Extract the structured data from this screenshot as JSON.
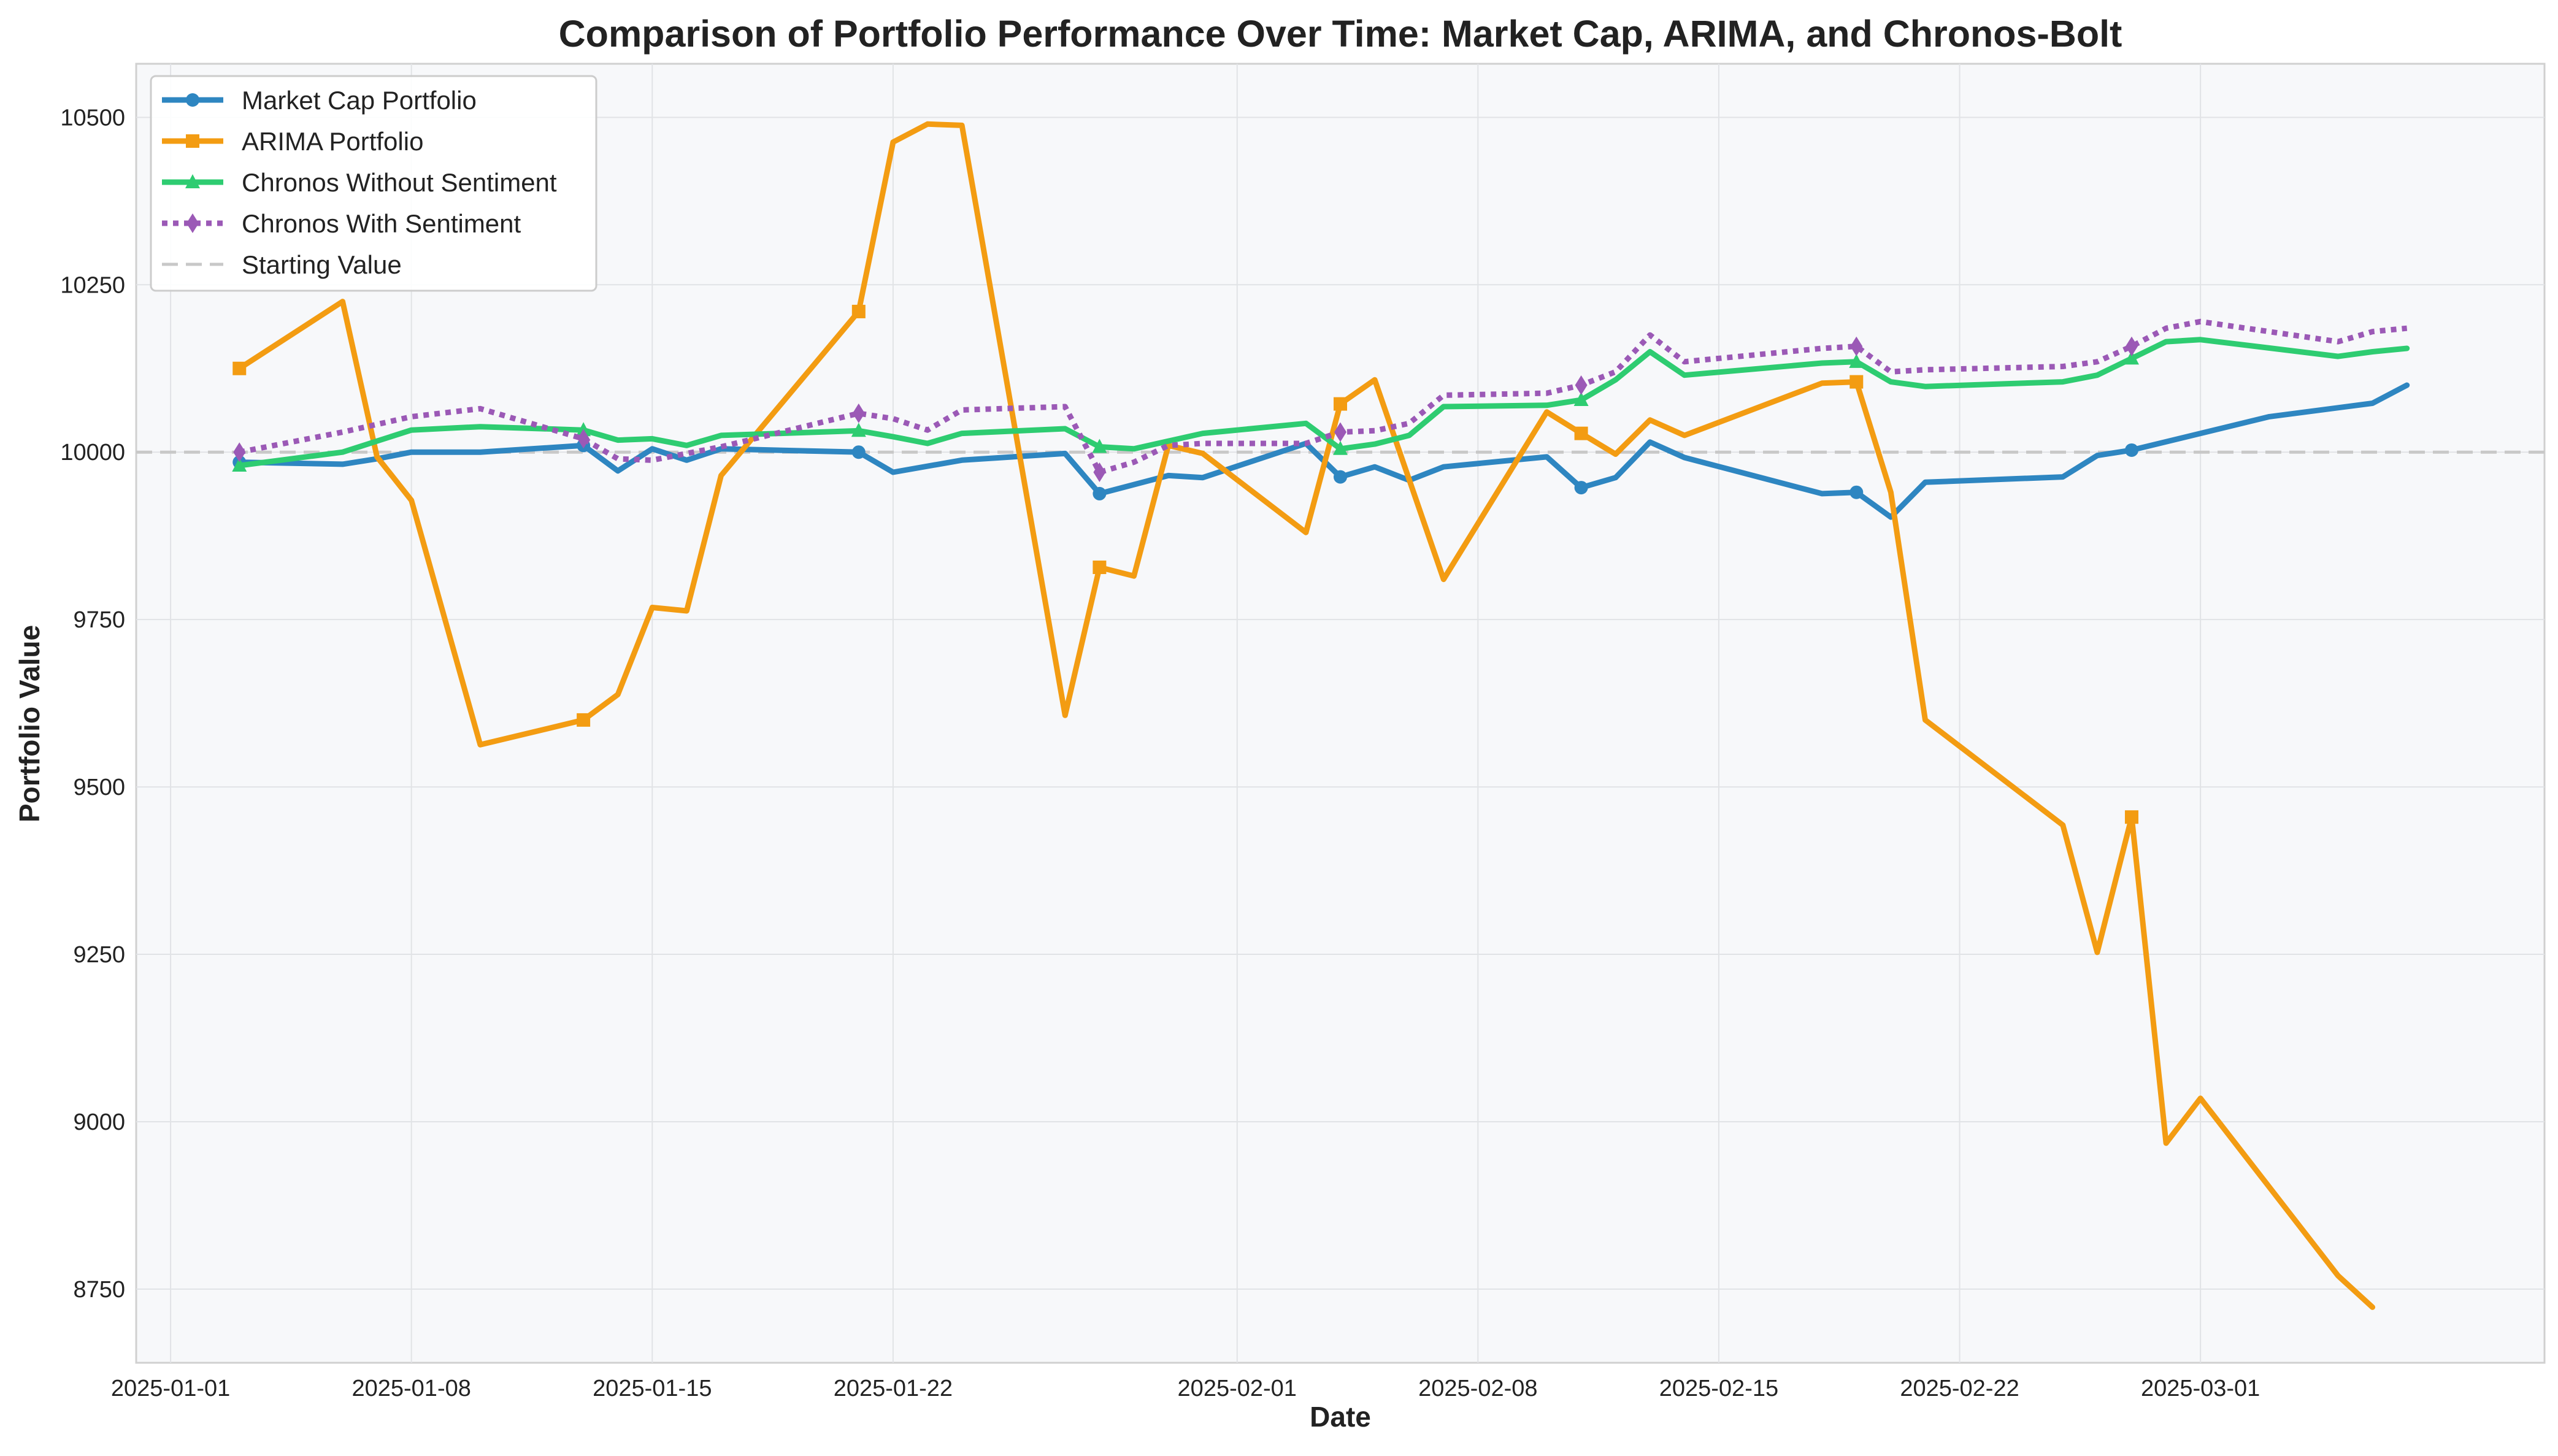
{
  "chart_data": {
    "type": "line",
    "title": "Comparison of Portfolio Performance Over Time: Market Cap, ARIMA, and Chronos-Bolt",
    "xlabel": "Date",
    "ylabel": "Portfolio Value",
    "x_ticks": [
      "2025-01-01",
      "2025-01-08",
      "2025-01-15",
      "2025-01-22",
      "2025-02-01",
      "2025-02-08",
      "2025-02-15",
      "2025-02-22",
      "2025-03-01"
    ],
    "y_ticks": [
      8750,
      9000,
      9250,
      9500,
      9750,
      10000,
      10250,
      10500
    ],
    "xlim": [
      "2024-12-31T00:00",
      "2025-03-11T00:00"
    ],
    "ylim": [
      8640,
      10580
    ],
    "grid": true,
    "legend_position": "top-left",
    "background_color": "#f7f8fa",
    "reference_line": {
      "name": "Starting Value",
      "y": 10000,
      "color": "#c8c8c8",
      "style": "dashed"
    },
    "series": [
      {
        "name": "Market Cap Portfolio",
        "color": "#2e86c1",
        "marker": "circle",
        "style": "solid",
        "marker_dates": [
          "2025-01-03",
          "2025-01-13",
          "2025-01-21",
          "2025-01-28",
          "2025-02-04",
          "2025-02-11",
          "2025-02-19",
          "2025-02-27"
        ],
        "points": [
          [
            "2025-01-03",
            9985
          ],
          [
            "2025-01-06",
            9982
          ],
          [
            "2025-01-07",
            9990
          ],
          [
            "2025-01-08",
            10000
          ],
          [
            "2025-01-10",
            10000
          ],
          [
            "2025-01-13",
            10010
          ],
          [
            "2025-01-14",
            9972
          ],
          [
            "2025-01-15",
            10005
          ],
          [
            "2025-01-16",
            9988
          ],
          [
            "2025-01-17",
            10005
          ],
          [
            "2025-01-21",
            10000
          ],
          [
            "2025-01-22",
            9970
          ],
          [
            "2025-01-24",
            9988
          ],
          [
            "2025-01-27",
            9998
          ],
          [
            "2025-01-28",
            9938
          ],
          [
            "2025-01-30",
            9965
          ],
          [
            "2025-01-31",
            9962
          ],
          [
            "2025-02-03",
            10013
          ],
          [
            "2025-02-04",
            9963
          ],
          [
            "2025-02-05",
            9978
          ],
          [
            "2025-02-06",
            9958
          ],
          [
            "2025-02-07",
            9978
          ],
          [
            "2025-02-10",
            9993
          ],
          [
            "2025-02-11",
            9947
          ],
          [
            "2025-02-12",
            9962
          ],
          [
            "2025-02-13",
            10015
          ],
          [
            "2025-02-14",
            9992
          ],
          [
            "2025-02-18",
            9938
          ],
          [
            "2025-02-19",
            9940
          ],
          [
            "2025-02-20",
            9903
          ],
          [
            "2025-02-21",
            9955
          ],
          [
            "2025-02-25",
            9963
          ],
          [
            "2025-02-26",
            9995
          ],
          [
            "2025-02-27",
            10003
          ],
          [
            "2025-03-03",
            10053
          ],
          [
            "2025-03-06",
            10073
          ],
          [
            "2025-03-07",
            10100
          ]
        ]
      },
      {
        "name": "ARIMA Portfolio",
        "color": "#f39c12",
        "marker": "square",
        "style": "solid",
        "marker_dates": [
          "2025-01-03",
          "2025-01-13",
          "2025-01-21",
          "2025-01-28",
          "2025-02-04",
          "2025-02-11",
          "2025-02-19",
          "2025-02-27"
        ],
        "points": [
          [
            "2025-01-03",
            10125
          ],
          [
            "2025-01-06",
            10225
          ],
          [
            "2025-01-07",
            9993
          ],
          [
            "2025-01-08",
            9928
          ],
          [
            "2025-01-10",
            9563
          ],
          [
            "2025-01-13",
            9600
          ],
          [
            "2025-01-14",
            9638
          ],
          [
            "2025-01-15",
            9768
          ],
          [
            "2025-01-16",
            9763
          ],
          [
            "2025-01-17",
            9965
          ],
          [
            "2025-01-21",
            10210
          ],
          [
            "2025-01-22",
            10463
          ],
          [
            "2025-01-23",
            10490
          ],
          [
            "2025-01-24",
            10488
          ],
          [
            "2025-01-27",
            9607
          ],
          [
            "2025-01-28",
            9828
          ],
          [
            "2025-01-29",
            9815
          ],
          [
            "2025-01-30",
            10010
          ],
          [
            "2025-01-31",
            9998
          ],
          [
            "2025-02-03",
            9880
          ],
          [
            "2025-02-04",
            10072
          ],
          [
            "2025-02-05",
            10108
          ],
          [
            "2025-02-07",
            9810
          ],
          [
            "2025-02-10",
            10060
          ],
          [
            "2025-02-11",
            10028
          ],
          [
            "2025-02-12",
            9997
          ],
          [
            "2025-02-13",
            10048
          ],
          [
            "2025-02-14",
            10025
          ],
          [
            "2025-02-18",
            10103
          ],
          [
            "2025-02-19",
            10105
          ],
          [
            "2025-02-20",
            9940
          ],
          [
            "2025-02-21",
            9600
          ],
          [
            "2025-02-25",
            9443
          ],
          [
            "2025-02-26",
            9253
          ],
          [
            "2025-02-27",
            9455
          ],
          [
            "2025-02-28",
            8968
          ],
          [
            "2025-03-01",
            9035
          ],
          [
            "2025-03-05",
            8770
          ],
          [
            "2025-03-06",
            8723
          ]
        ]
      },
      {
        "name": "Chronos Without Sentiment",
        "color": "#2ecc71",
        "marker": "triangle",
        "style": "solid",
        "marker_dates": [
          "2025-01-03",
          "2025-01-13",
          "2025-01-21",
          "2025-01-28",
          "2025-02-04",
          "2025-02-11",
          "2025-02-19",
          "2025-02-27"
        ],
        "points": [
          [
            "2025-01-03",
            9980
          ],
          [
            "2025-01-06",
            10000
          ],
          [
            "2025-01-08",
            10033
          ],
          [
            "2025-01-10",
            10038
          ],
          [
            "2025-01-13",
            10033
          ],
          [
            "2025-01-14",
            10018
          ],
          [
            "2025-01-15",
            10020
          ],
          [
            "2025-01-16",
            10010
          ],
          [
            "2025-01-17",
            10025
          ],
          [
            "2025-01-21",
            10032
          ],
          [
            "2025-01-22",
            10023
          ],
          [
            "2025-01-23",
            10013
          ],
          [
            "2025-01-24",
            10028
          ],
          [
            "2025-01-27",
            10035
          ],
          [
            "2025-01-28",
            10008
          ],
          [
            "2025-01-29",
            10005
          ],
          [
            "2025-01-31",
            10028
          ],
          [
            "2025-02-03",
            10043
          ],
          [
            "2025-02-04",
            10005
          ],
          [
            "2025-02-05",
            10012
          ],
          [
            "2025-02-06",
            10025
          ],
          [
            "2025-02-07",
            10068
          ],
          [
            "2025-02-10",
            10070
          ],
          [
            "2025-02-11",
            10078
          ],
          [
            "2025-02-12",
            10108
          ],
          [
            "2025-02-13",
            10150
          ],
          [
            "2025-02-14",
            10115
          ],
          [
            "2025-02-18",
            10133
          ],
          [
            "2025-02-19",
            10135
          ],
          [
            "2025-02-20",
            10105
          ],
          [
            "2025-02-21",
            10098
          ],
          [
            "2025-02-25",
            10105
          ],
          [
            "2025-02-26",
            10115
          ],
          [
            "2025-02-27",
            10140
          ],
          [
            "2025-02-28",
            10165
          ],
          [
            "2025-03-01",
            10168
          ],
          [
            "2025-03-05",
            10143
          ],
          [
            "2025-03-06",
            10150
          ],
          [
            "2025-03-07",
            10155
          ]
        ]
      },
      {
        "name": "Chronos With Sentiment",
        "color": "#9b59b6",
        "marker": "diamond",
        "style": "dotted",
        "marker_dates": [
          "2025-01-03",
          "2025-01-13",
          "2025-01-21",
          "2025-01-28",
          "2025-02-04",
          "2025-02-11",
          "2025-02-19",
          "2025-02-27"
        ],
        "points": [
          [
            "2025-01-03",
            10000
          ],
          [
            "2025-01-06",
            10030
          ],
          [
            "2025-01-08",
            10053
          ],
          [
            "2025-01-10",
            10065
          ],
          [
            "2025-01-13",
            10020
          ],
          [
            "2025-01-14",
            9990
          ],
          [
            "2025-01-15",
            9988
          ],
          [
            "2025-01-16",
            9998
          ],
          [
            "2025-01-17",
            10008
          ],
          [
            "2025-01-21",
            10058
          ],
          [
            "2025-01-22",
            10050
          ],
          [
            "2025-01-23",
            10033
          ],
          [
            "2025-01-24",
            10063
          ],
          [
            "2025-01-27",
            10068
          ],
          [
            "2025-01-28",
            9970
          ],
          [
            "2025-01-29",
            9985
          ],
          [
            "2025-01-30",
            10010
          ],
          [
            "2025-01-31",
            10013
          ],
          [
            "2025-02-03",
            10013
          ],
          [
            "2025-02-04",
            10030
          ],
          [
            "2025-02-05",
            10032
          ],
          [
            "2025-02-06",
            10043
          ],
          [
            "2025-02-07",
            10085
          ],
          [
            "2025-02-10",
            10088
          ],
          [
            "2025-02-11",
            10100
          ],
          [
            "2025-02-12",
            10120
          ],
          [
            "2025-02-13",
            10175
          ],
          [
            "2025-02-14",
            10135
          ],
          [
            "2025-02-18",
            10155
          ],
          [
            "2025-02-19",
            10158
          ],
          [
            "2025-02-20",
            10120
          ],
          [
            "2025-02-21",
            10123
          ],
          [
            "2025-02-25",
            10128
          ],
          [
            "2025-02-26",
            10135
          ],
          [
            "2025-02-27",
            10158
          ],
          [
            "2025-02-28",
            10185
          ],
          [
            "2025-03-01",
            10195
          ],
          [
            "2025-03-05",
            10165
          ],
          [
            "2025-03-06",
            10180
          ],
          [
            "2025-03-07",
            10185
          ]
        ]
      }
    ]
  }
}
